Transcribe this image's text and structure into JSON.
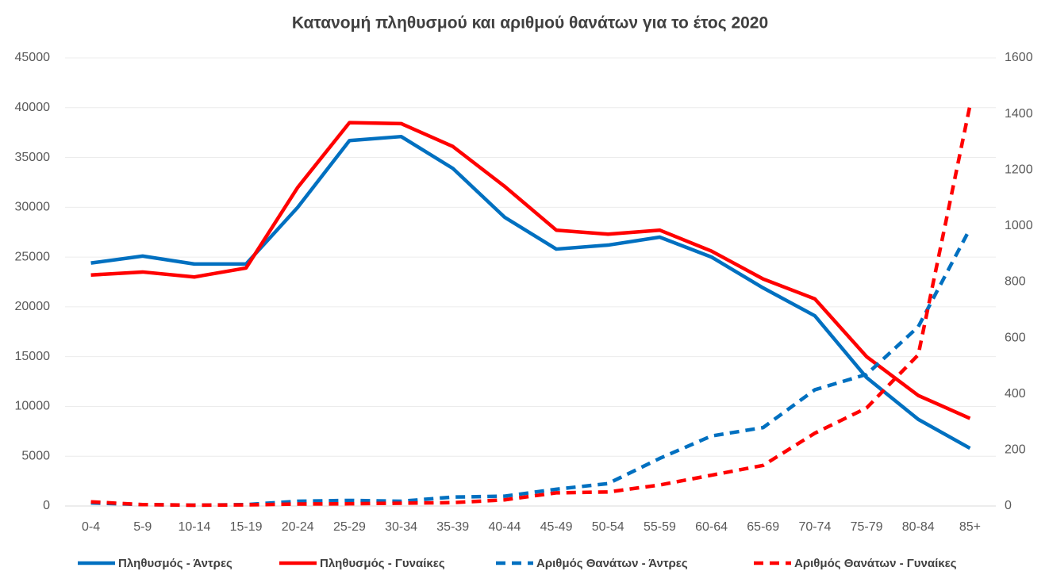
{
  "chart_data": {
    "type": "line",
    "title": "Κατανομή πληθυσμού και αριθμού θανάτων για το έτος 2020",
    "categories": [
      "0-4",
      "5-9",
      "10-14",
      "15-19",
      "20-24",
      "25-29",
      "30-34",
      "35-39",
      "40-44",
      "45-49",
      "50-54",
      "55-59",
      "60-64",
      "65-69",
      "70-74",
      "75-79",
      "80-84",
      "85+"
    ],
    "series": [
      {
        "name": "Πληθυσμός  - Άντρες",
        "color": "#0070c0",
        "dashed": false,
        "values": [
          24400,
          25100,
          24300,
          24300,
          30000,
          36700,
          37100,
          33900,
          29000,
          25800,
          26200,
          27000,
          25000,
          21900,
          19100,
          12900,
          8700,
          5800
        ]
      },
      {
        "name": "Πληθυσμός  - Γυναίκες",
        "color": "#ff0000",
        "dashed": false,
        "values": [
          23200,
          23500,
          23000,
          23900,
          32000,
          38500,
          38400,
          36100,
          32100,
          27700,
          27300,
          27700,
          25600,
          22800,
          20800,
          15000,
          11100,
          8800
        ]
      },
      {
        "name": "Αριθμός Θανάτων - Άντρες",
        "color": "#0070c0",
        "dashed": true,
        "axis": "y2",
        "values": [
          11,
          5,
          3,
          5,
          17,
          20,
          17,
          32,
          35,
          60,
          80,
          170,
          250,
          280,
          415,
          470,
          640,
          990
        ]
      },
      {
        "name": "Αριθμός Θανάτων - Γυναίκες",
        "color": "#ff0000",
        "dashed": true,
        "axis": "y2",
        "values": [
          15,
          5,
          3,
          4,
          7,
          8,
          10,
          12,
          22,
          47,
          50,
          75,
          110,
          145,
          260,
          350,
          540,
          1430
        ]
      }
    ],
    "ylim": [
      0,
      45000
    ],
    "yticks": [
      0,
      5000,
      10000,
      15000,
      20000,
      25000,
      30000,
      35000,
      40000,
      45000
    ],
    "y2lim": [
      0,
      1600
    ],
    "y2ticks": [
      0,
      200,
      400,
      600,
      800,
      1000,
      1200,
      1400,
      1600
    ],
    "grid": true,
    "legend": "bottom"
  }
}
